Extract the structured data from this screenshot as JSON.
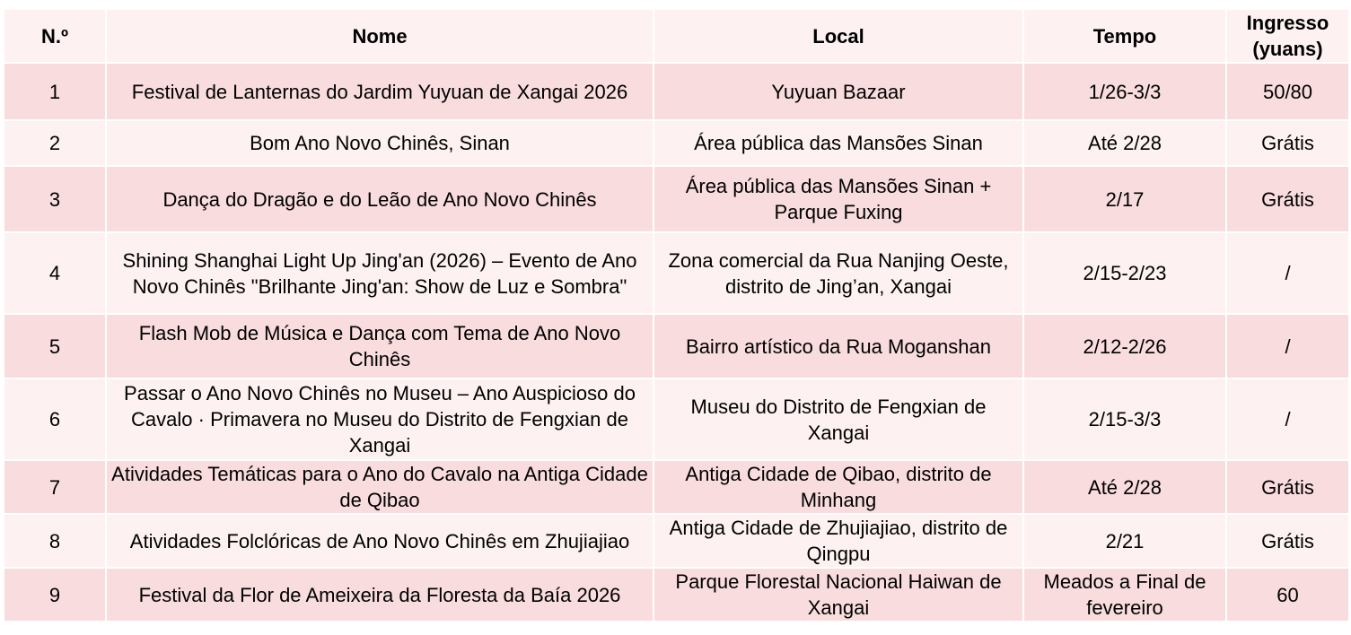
{
  "headers": [
    "N.º",
    "Nome",
    "Local",
    "Tempo",
    "Ingresso (yuans)"
  ],
  "rows": [
    {
      "no": "1",
      "name": "Festival de Lanternas do Jardim Yuyuan de Xangai 2026",
      "place": "Yuyuan Bazaar",
      "time": "1/26-3/3",
      "ticket": "50/80"
    },
    {
      "no": "2",
      "name": "Bom Ano Novo Chinês, Sinan",
      "place": "Área pública das Mansões Sinan",
      "time": "Até 2/28",
      "ticket": "Grátis"
    },
    {
      "no": "3",
      "name": "Dança do Dragão e do Leão de Ano Novo Chinês",
      "place": "Área pública das Mansões Sinan + Parque Fuxing",
      "time": "2/17",
      "ticket": "Grátis"
    },
    {
      "no": "4",
      "name": "Shining Shanghai Light Up Jing'an (2026) – Evento de Ano Novo Chinês \"Brilhante Jing'an: Show de Luz e Sombra\"",
      "place": "Zona comercial da Rua Nanjing Oeste, distrito de Jing’an, Xangai",
      "time": "2/15-2/23",
      "ticket": "/"
    },
    {
      "no": "5",
      "name": "Flash Mob de Música e Dança com Tema de Ano Novo Chinês",
      "place": "Bairro artístico da Rua Moganshan",
      "time": "2/12-2/26",
      "ticket": "/"
    },
    {
      "no": "6",
      "name": "Passar o Ano Novo Chinês no Museu – Ano Auspicioso do Cavalo · Primavera no Museu do Distrito de Fengxian de Xangai",
      "place": "Museu do Distrito de Fengxian de Xangai",
      "time": "2/15-3/3",
      "ticket": "/"
    },
    {
      "no": "7",
      "name": "Atividades Temáticas para o Ano do Cavalo na Antiga Cidade de Qibao",
      "place": "Antiga Cidade de Qibao, distrito de Minhang",
      "time": "Até 2/28",
      "ticket": "Grátis"
    },
    {
      "no": "8",
      "name": "Atividades Folclóricas de Ano Novo Chinês em Zhujiajiao",
      "place": "Antiga Cidade de Zhujiajiao, distrito de Qingpu",
      "time": "2/21",
      "ticket": "Grátis"
    },
    {
      "no": "9",
      "name": "Festival da Flor de Ameixeira da Floresta da Baía 2026",
      "place": "Parque Florestal Nacional Haiwan de Xangai",
      "time": "Meados a Final de fevereiro",
      "ticket": "60"
    }
  ],
  "colors": {
    "header_bg": "#fdf1f1",
    "odd_row_bg": "#f9dcdd",
    "even_row_bg": "#fdf1f1",
    "border": "#ffffff"
  }
}
